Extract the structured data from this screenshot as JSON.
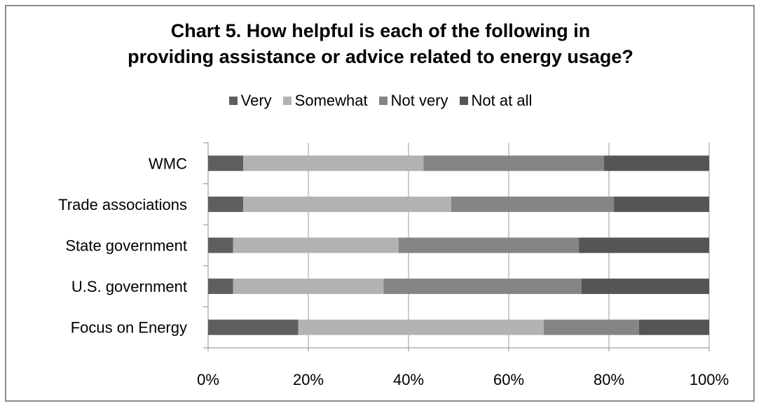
{
  "chart_data": {
    "type": "bar",
    "orientation": "horizontal",
    "stacked": true,
    "percent": true,
    "title_line1": "Chart 5.  How helpful is each of the following in",
    "title_line2": "providing assistance or advice related to energy usage?",
    "categories": [
      "WMC",
      "Trade associations",
      "State government",
      "U.S. government",
      "Focus on Energy"
    ],
    "series": [
      {
        "name": "Very",
        "color": "#5f5f5f",
        "values": [
          7,
          7,
          5,
          5,
          18
        ]
      },
      {
        "name": "Somewhat",
        "color": "#b2b2b2",
        "values": [
          36,
          41.5,
          33,
          30,
          49
        ]
      },
      {
        "name": "Not very",
        "color": "#858585",
        "values": [
          36,
          32.5,
          36,
          39.5,
          19
        ]
      },
      {
        "name": "Not at all",
        "color": "#555555",
        "values": [
          21,
          19,
          26,
          25.5,
          14
        ]
      }
    ],
    "xticks": [
      "0%",
      "20%",
      "40%",
      "60%",
      "80%",
      "100%"
    ],
    "xlim": [
      0,
      100
    ],
    "grid": true,
    "legend": "top"
  }
}
